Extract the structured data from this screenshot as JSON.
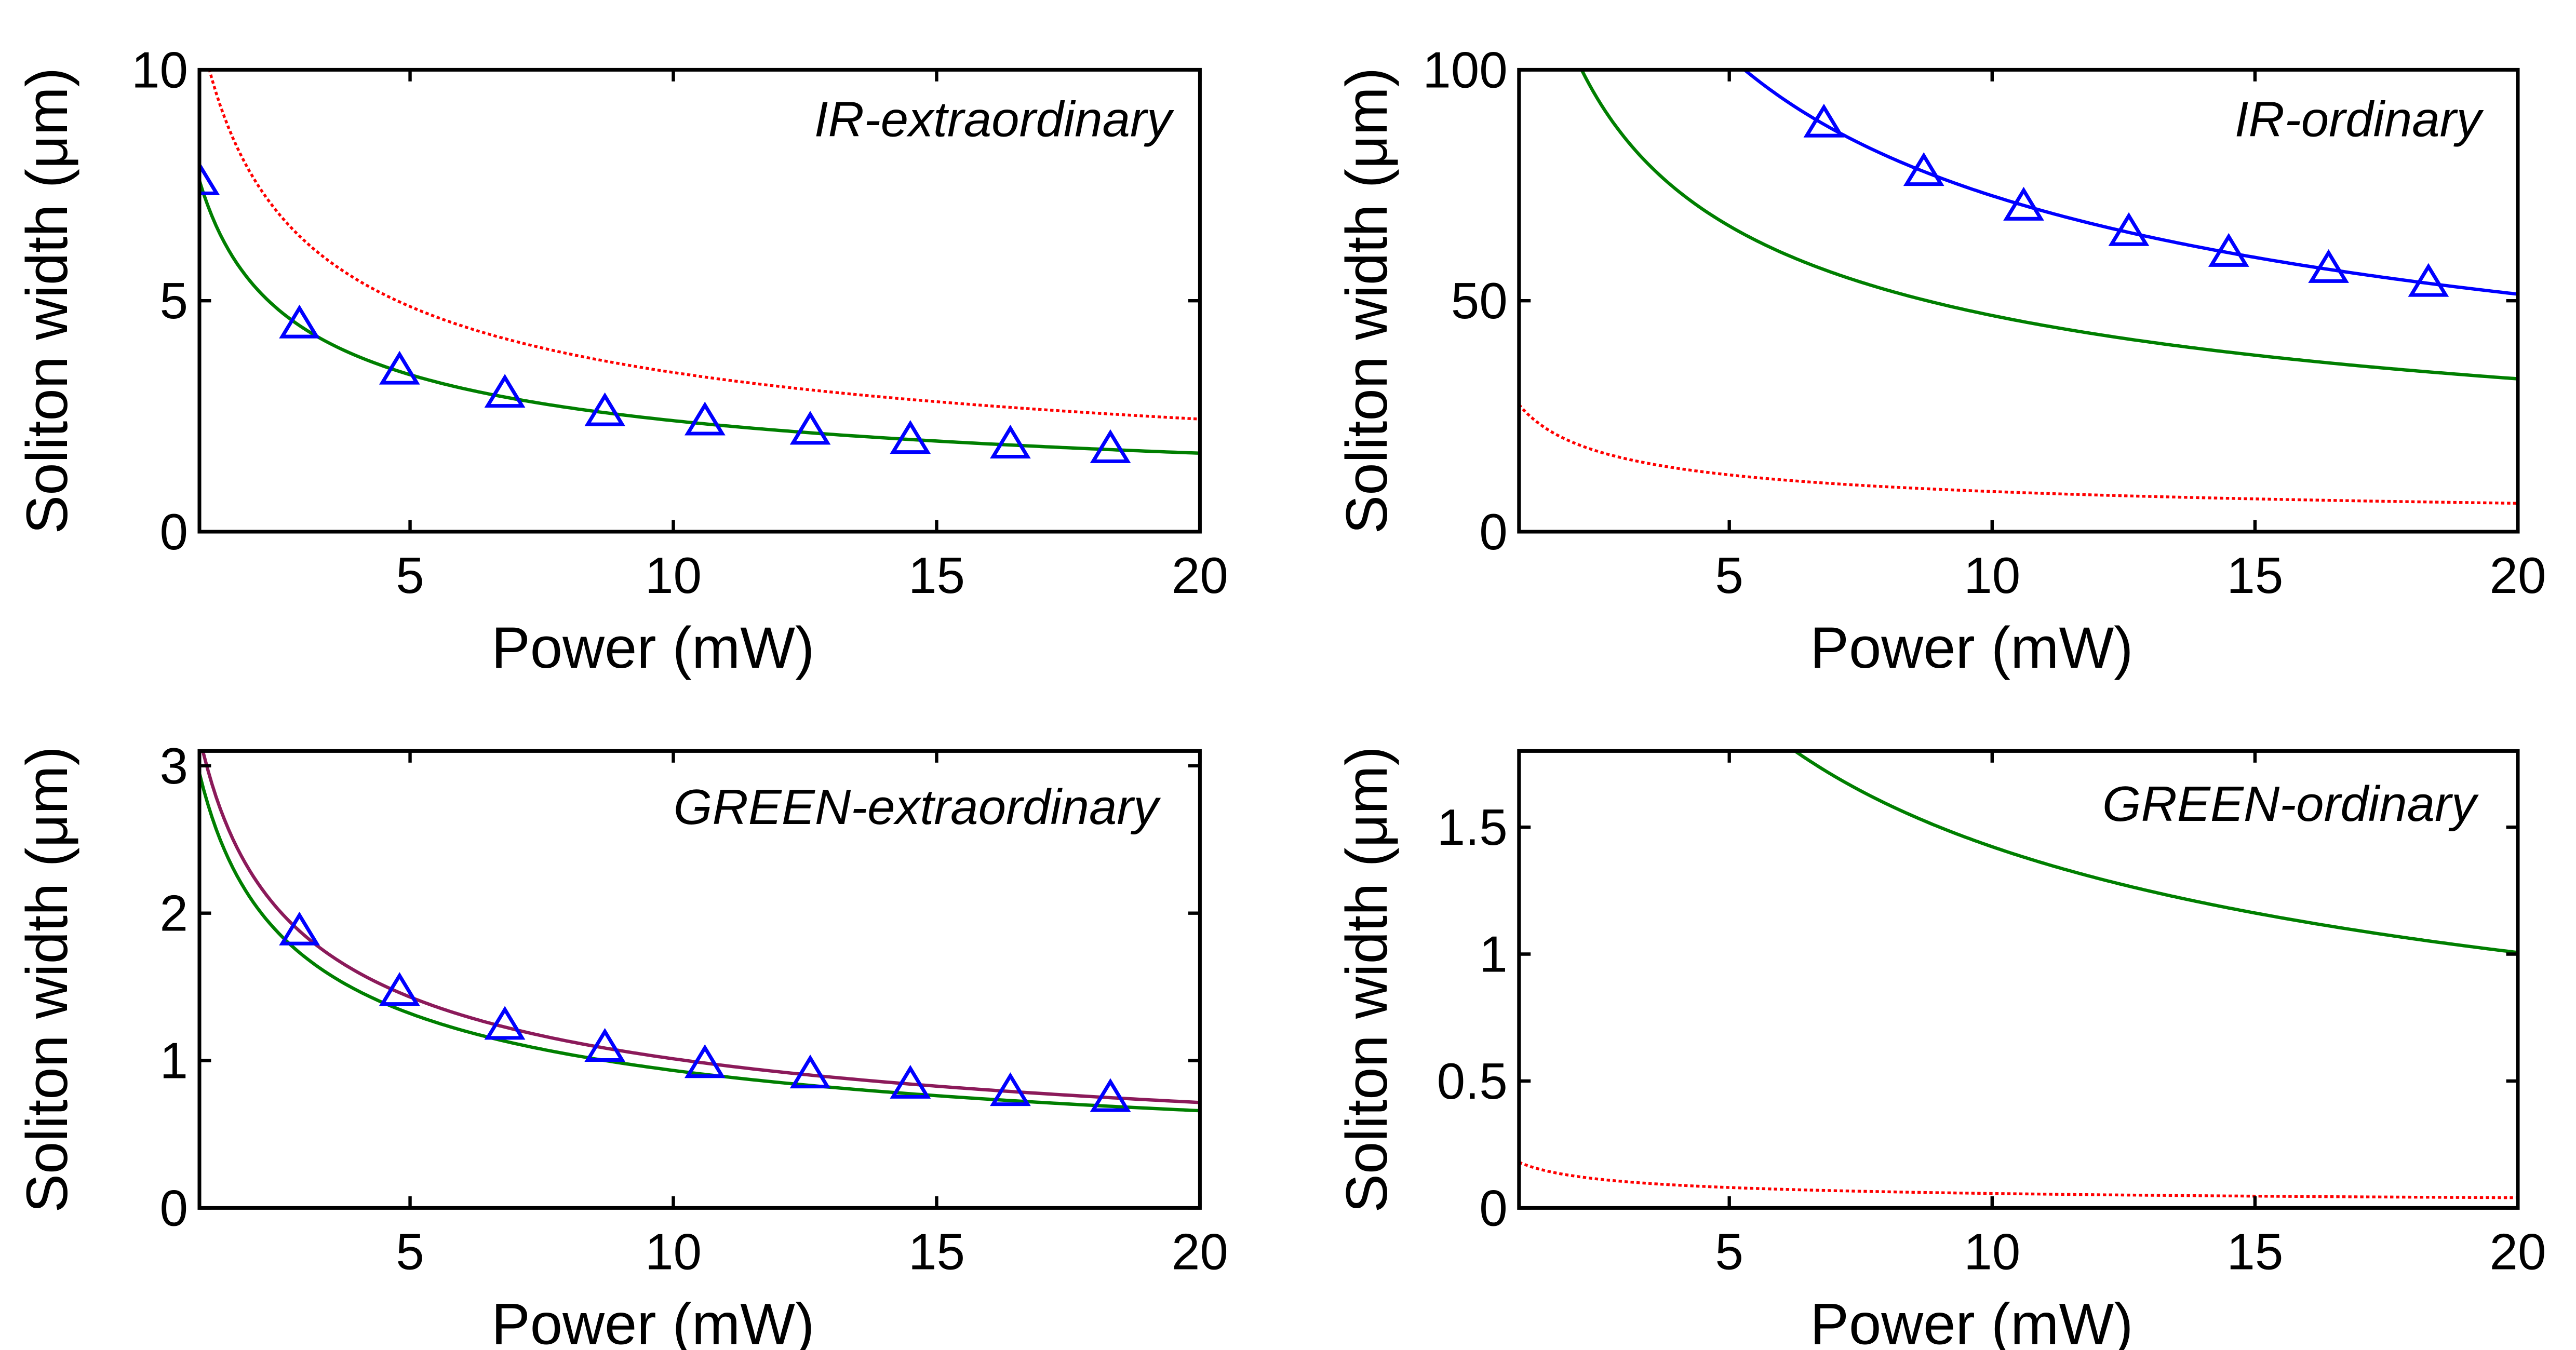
{
  "colors": {
    "red": "#ff0000",
    "green": "#007f00",
    "blue": "#0000ff",
    "purple": "#8b1a5a",
    "axis": "#000000"
  },
  "chart_data": [
    {
      "type": "line",
      "title": "IR-extraordinary",
      "xlabel": "Power (mW)",
      "ylabel": "Soliton width (μm)",
      "xlim": [
        1,
        20
      ],
      "ylim": [
        0,
        10
      ],
      "xticks": [
        5,
        10,
        15,
        20
      ],
      "xtick_labels": [
        "5",
        "10",
        "15",
        "20"
      ],
      "yticks": [
        0,
        5,
        10
      ],
      "ytick_labels": [
        "0",
        "5",
        "10"
      ],
      "series": [
        {
          "name": "red dotted",
          "color": "#ff0000",
          "style": "dotted",
          "formula": "power",
          "a": 10.9,
          "b": 0.5,
          "xmin": 1.0,
          "xmax": 20
        },
        {
          "name": "green solid",
          "color": "#007f00",
          "style": "solid",
          "formula": "power",
          "a": 7.6,
          "b": 0.5,
          "xmin": 1.0,
          "xmax": 20
        },
        {
          "name": "blue triangles",
          "color": "#0000ff",
          "style": "markers",
          "x": [
            1.0,
            2.9,
            4.8,
            6.8,
            8.7,
            10.6,
            12.6,
            14.5,
            16.4,
            18.3
          ],
          "y": [
            7.6,
            4.5,
            3.5,
            3.0,
            2.6,
            2.4,
            2.2,
            2.0,
            1.9,
            1.8
          ]
        }
      ]
    },
    {
      "type": "line",
      "title": "IR-ordinary",
      "xlabel": "Power (mW)",
      "ylabel": "Soliton width (μm)",
      "xlim": [
        1,
        20
      ],
      "ylim": [
        0,
        100
      ],
      "xticks": [
        5,
        10,
        15,
        20
      ],
      "xtick_labels": [
        "5",
        "10",
        "15",
        "20"
      ],
      "yticks": [
        0,
        50,
        100
      ],
      "ytick_labels": [
        "0",
        "50",
        "100"
      ],
      "series": [
        {
          "name": "red dotted",
          "color": "#ff0000",
          "style": "dotted",
          "formula": "power",
          "a": 27.5,
          "b": 0.5,
          "xmin": 1.0,
          "xmax": 20
        },
        {
          "name": "green solid",
          "color": "#007f00",
          "style": "solid",
          "formula": "power",
          "a": 148,
          "b": 0.5,
          "xmin": 2.19,
          "xmax": 20
        },
        {
          "name": "blue solid",
          "color": "#0000ff",
          "style": "solid",
          "formula": "power",
          "a": 230,
          "b": 0.5,
          "xmin": 5.29,
          "xmax": 20
        },
        {
          "name": "blue triangles",
          "color": "#0000ff",
          "style": "markers",
          "x": [
            6.8,
            8.7,
            10.6,
            12.6,
            14.5,
            16.4,
            18.3
          ],
          "y": [
            88.5,
            78,
            70.5,
            65,
            60.5,
            57,
            54
          ]
        }
      ]
    },
    {
      "type": "line",
      "title": "GREEN-extraordinary",
      "xlabel": "Power (mW)",
      "ylabel": "Soliton width (μm)",
      "xlim": [
        1,
        20
      ],
      "ylim": [
        0,
        3.1
      ],
      "xticks": [
        5,
        10,
        15,
        20
      ],
      "xtick_labels": [
        "5",
        "10",
        "15",
        "20"
      ],
      "yticks": [
        0,
        1,
        2,
        3
      ],
      "ytick_labels": [
        "0",
        "1",
        "2",
        "3"
      ],
      "series": [
        {
          "name": "red dotted",
          "color": "#ff0000",
          "style": "dotted",
          "formula": "power",
          "a": 3.2,
          "b": 0.5,
          "xmin": 1.0,
          "xmax": 20
        },
        {
          "name": "purple solid",
          "color": "#8b1a5a",
          "style": "solid",
          "formula": "power",
          "a": 3.2,
          "b": 0.5,
          "xmin": 1.0,
          "xmax": 20
        },
        {
          "name": "green solid",
          "color": "#007f00",
          "style": "solid",
          "formula": "power",
          "a": 2.95,
          "b": 0.5,
          "xmin": 1.0,
          "xmax": 20
        },
        {
          "name": "blue triangles",
          "color": "#0000ff",
          "style": "markers",
          "x": [
            2.9,
            4.8,
            6.8,
            8.7,
            10.6,
            12.6,
            14.5,
            16.4,
            18.3
          ],
          "y": [
            1.88,
            1.47,
            1.24,
            1.09,
            0.98,
            0.91,
            0.84,
            0.79,
            0.75
          ]
        }
      ]
    },
    {
      "type": "line",
      "title": "GREEN-ordinary",
      "xlabel": "Power (mW)",
      "ylabel": "Soliton width (μm)",
      "xlim": [
        1,
        20
      ],
      "ylim": [
        0,
        1.8
      ],
      "xticks": [
        5,
        10,
        15,
        20
      ],
      "xtick_labels": [
        "5",
        "10",
        "15",
        "20"
      ],
      "yticks": [
        0,
        0.5,
        1,
        1.5
      ],
      "ytick_labels": [
        "0",
        "0.5",
        "1",
        "1.5"
      ],
      "series": [
        {
          "name": "green solid",
          "color": "#007f00",
          "style": "solid",
          "formula": "power",
          "a": 4.5,
          "b": 0.5,
          "xmin": 6.25,
          "xmax": 20
        },
        {
          "name": "red dotted",
          "color": "#ff0000",
          "style": "dotted",
          "formula": "power",
          "a": 0.18,
          "b": 0.5,
          "xmin": 1.0,
          "xmax": 20
        }
      ]
    }
  ]
}
